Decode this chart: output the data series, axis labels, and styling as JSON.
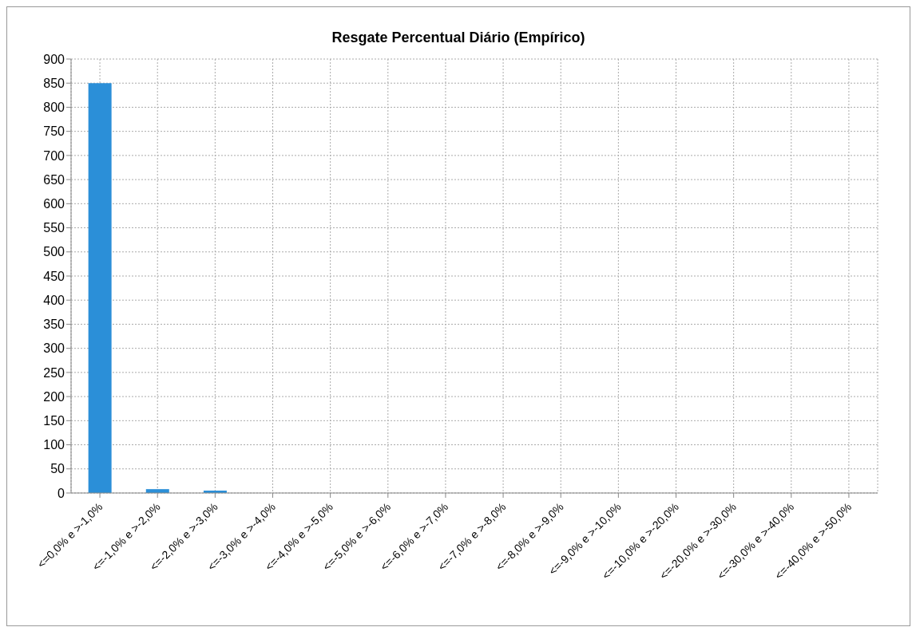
{
  "chart_data": {
    "type": "bar",
    "title": "Resgate Percentual Diário (Empírico)",
    "categories": [
      "<=0,0% e >-1,0%",
      "<=-1,0% e >-2,0%",
      "<=-2,0% e >-3,0%",
      "<=-3,0% e >-4,0%",
      "<=-4,0% e >-5,0%",
      "<=-5,0% e >-6,0%",
      "<=-6,0% e >-7,0%",
      "<=-7,0% e >-8,0%",
      "<=-8,0% e >-9,0%",
      "<=-9,0% e >-10,0%",
      "<=-10,0% e >-20,0%",
      "<=-20,0% e >-30,0%",
      "<=-30,0% e >-40,0%",
      "<=-40,0% e >-50,0%"
    ],
    "values": [
      850,
      8,
      5,
      0,
      0,
      0,
      0,
      0,
      0,
      0,
      0,
      0,
      0,
      0
    ],
    "color": "#2b8fd8",
    "ylim": [
      0,
      900
    ],
    "yticks": [
      0,
      50,
      100,
      150,
      200,
      250,
      300,
      350,
      400,
      450,
      500,
      550,
      600,
      650,
      700,
      750,
      800,
      850,
      900
    ],
    "grid": true
  }
}
